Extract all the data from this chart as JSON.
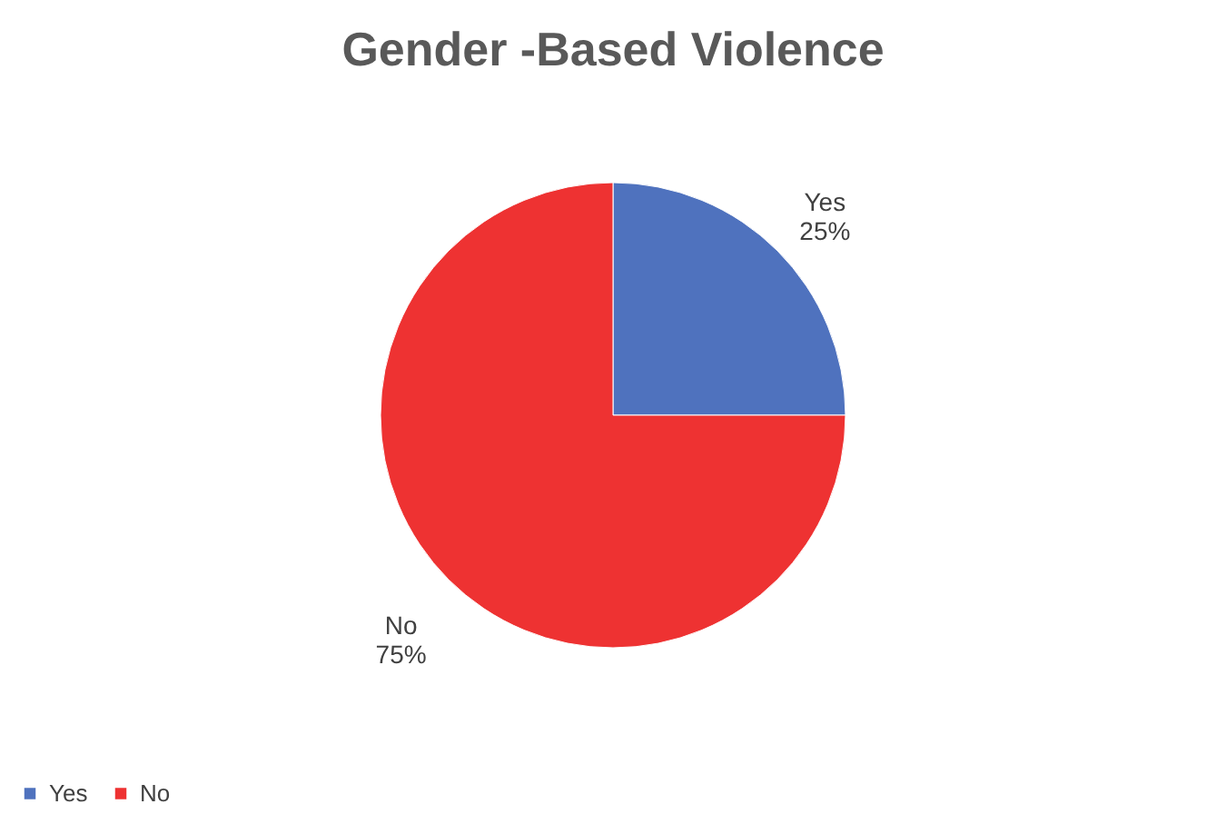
{
  "chart_data": {
    "type": "pie",
    "title": "Gender -Based Violence",
    "categories": [
      "Yes",
      "No"
    ],
    "values": [
      25,
      75
    ],
    "colors": [
      "#4f72be",
      "#ee3232"
    ],
    "value_labels": [
      "25%",
      "75%"
    ],
    "legend": "bottom"
  }
}
